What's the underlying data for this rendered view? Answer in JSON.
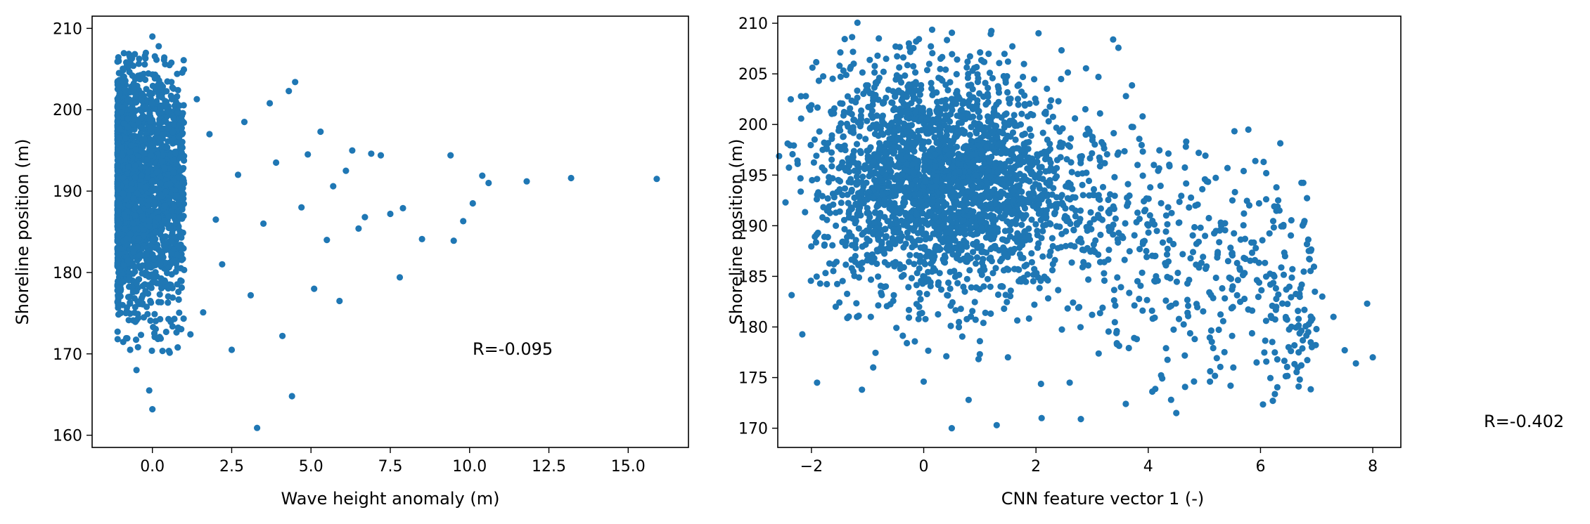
{
  "chart_data": [
    {
      "type": "scatter",
      "xlabel": "Wave height anomaly (m)",
      "ylabel": "Shoreline position (m)",
      "xlim": [
        -1.9,
        16.9
      ],
      "ylim": [
        158.5,
        211.5
      ],
      "xticks": [
        0.0,
        2.5,
        5.0,
        7.5,
        10.0,
        12.5,
        15.0
      ],
      "xtick_labels": [
        "0.0",
        "2.5",
        "5.0",
        "7.5",
        "10.0",
        "12.5",
        "15.0"
      ],
      "yticks": [
        160,
        170,
        180,
        190,
        200,
        210
      ],
      "ytick_labels": [
        "160",
        "170",
        "180",
        "190",
        "200",
        "210"
      ],
      "marker_color": "#1f77b4",
      "annotation": "R=-0.095",
      "grid": false,
      "points": [
        [
          -0.8,
          175.2
        ],
        [
          -0.6,
          205.4
        ],
        [
          -0.4,
          182.1
        ],
        [
          -0.9,
          198.3
        ],
        [
          -0.2,
          190.5
        ],
        [
          0.0,
          209.0
        ],
        [
          0.2,
          207.8
        ],
        [
          0.4,
          188.2
        ],
        [
          -0.7,
          170.5
        ],
        [
          -0.5,
          168.0
        ],
        [
          -0.1,
          165.5
        ],
        [
          0.0,
          163.2
        ],
        [
          0.3,
          201.5
        ],
        [
          0.6,
          203.4
        ],
        [
          0.8,
          196.0
        ],
        [
          1.0,
          180.3
        ],
        [
          1.2,
          172.4
        ],
        [
          1.4,
          201.3
        ],
        [
          1.6,
          175.1
        ],
        [
          1.8,
          197.0
        ],
        [
          2.0,
          186.5
        ],
        [
          2.2,
          181.0
        ],
        [
          2.5,
          170.5
        ],
        [
          2.7,
          192.0
        ],
        [
          2.9,
          198.5
        ],
        [
          3.1,
          177.2
        ],
        [
          3.3,
          160.9
        ],
        [
          3.5,
          186.0
        ],
        [
          3.7,
          200.8
        ],
        [
          3.9,
          193.5
        ],
        [
          4.1,
          172.2
        ],
        [
          4.3,
          202.3
        ],
        [
          4.4,
          164.8
        ],
        [
          4.5,
          203.4
        ],
        [
          4.7,
          188.0
        ],
        [
          4.9,
          194.5
        ],
        [
          5.1,
          178.0
        ],
        [
          5.3,
          197.3
        ],
        [
          5.5,
          184.0
        ],
        [
          5.7,
          190.6
        ],
        [
          5.9,
          176.5
        ],
        [
          6.1,
          192.5
        ],
        [
          6.3,
          195.0
        ],
        [
          6.5,
          185.4
        ],
        [
          6.7,
          186.8
        ],
        [
          6.9,
          194.6
        ],
        [
          7.2,
          194.4
        ],
        [
          7.5,
          187.2
        ],
        [
          7.8,
          179.4
        ],
        [
          7.9,
          187.9
        ],
        [
          8.5,
          184.1
        ],
        [
          9.4,
          194.4
        ],
        [
          9.5,
          183.9
        ],
        [
          9.8,
          186.3
        ],
        [
          10.1,
          188.5
        ],
        [
          10.4,
          191.9
        ],
        [
          10.6,
          191.0
        ],
        [
          11.8,
          191.2
        ],
        [
          13.2,
          191.6
        ],
        [
          15.9,
          191.5
        ]
      ],
      "dense_band": {
        "x_range": [
          -1.1,
          1.0
        ],
        "y_range": [
          169.0,
          207.0
        ],
        "approx_count": 2200
      }
    },
    {
      "type": "scatter",
      "xlabel": "CNN feature vector 1 (-)",
      "ylabel": "Shoreline position (m)",
      "xlim": [
        -2.6,
        8.5
      ],
      "ylim": [
        168.1,
        210.7
      ],
      "xticks": [
        -2,
        0,
        2,
        4,
        6,
        8
      ],
      "xtick_labels": [
        "−2",
        "0",
        "2",
        "4",
        "6",
        "8"
      ],
      "yticks": [
        170,
        175,
        180,
        185,
        190,
        195,
        200,
        205,
        210
      ],
      "ytick_labels": [
        "170",
        "175",
        "180",
        "185",
        "190",
        "195",
        "200",
        "205",
        "210"
      ],
      "marker_color": "#1f77b4",
      "annotation": "R=-0.402",
      "grid": false,
      "points": [
        [
          -2.1,
          202.8
        ],
        [
          -2.0,
          201.9
        ],
        [
          -1.9,
          174.5
        ],
        [
          -1.8,
          197.5
        ],
        [
          -1.6,
          186.2
        ],
        [
          -1.5,
          205.8
        ],
        [
          -1.3,
          191.6
        ],
        [
          -1.1,
          173.8
        ],
        [
          -0.9,
          176.0
        ],
        [
          -0.8,
          208.5
        ],
        [
          -0.5,
          207.7
        ],
        [
          -0.3,
          178.4
        ],
        [
          0.0,
          174.6
        ],
        [
          0.3,
          206.5
        ],
        [
          0.5,
          170.0
        ],
        [
          0.8,
          172.8
        ],
        [
          1.0,
          178.6
        ],
        [
          1.3,
          170.3
        ],
        [
          1.5,
          177.0
        ],
        [
          1.8,
          202.0
        ],
        [
          2.1,
          171.0
        ],
        [
          2.4,
          202.3
        ],
        [
          2.6,
          174.5
        ],
        [
          2.8,
          170.9
        ],
        [
          3.0,
          181.2
        ],
        [
          3.2,
          198.0
        ],
        [
          3.4,
          194.8
        ],
        [
          3.6,
          172.4
        ],
        [
          3.9,
          200.8
        ],
        [
          4.1,
          196.0
        ],
        [
          4.3,
          186.3
        ],
        [
          4.5,
          171.5
        ],
        [
          4.7,
          181.4
        ],
        [
          4.9,
          197.2
        ],
        [
          5.1,
          174.6
        ],
        [
          5.3,
          190.0
        ],
        [
          5.5,
          192.5
        ],
        [
          5.7,
          195.4
        ],
        [
          5.9,
          186.6
        ],
        [
          6.1,
          180.6
        ],
        [
          6.3,
          176.8
        ],
        [
          6.5,
          178.0
        ],
        [
          6.7,
          174.8
        ],
        [
          6.9,
          180.6
        ],
        [
          7.1,
          183.0
        ],
        [
          7.3,
          181.0
        ],
        [
          7.5,
          177.7
        ],
        [
          7.7,
          176.4
        ],
        [
          7.9,
          182.3
        ],
        [
          8.0,
          177.0
        ]
      ],
      "dense_cluster": {
        "center": [
          0.3,
          194.0
        ],
        "x_spread": 1.1,
        "y_spread": 5.5,
        "approx_count": 2000
      }
    }
  ]
}
